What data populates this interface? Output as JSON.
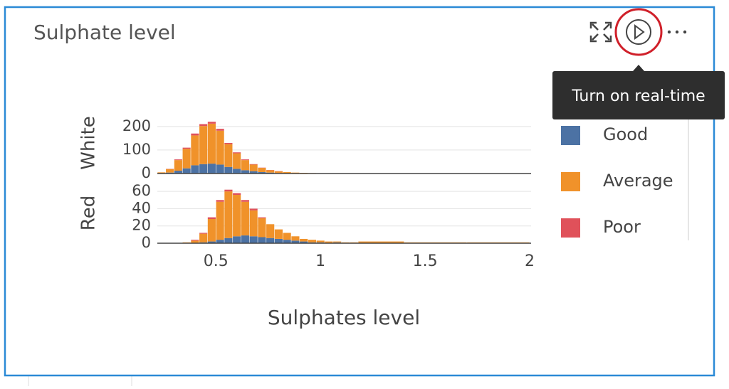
{
  "header": {
    "title": "Sulphate level"
  },
  "tooltip": {
    "text": "Turn on real-time"
  },
  "chart_data": {
    "type": "histogram",
    "x_label": "Sulphates level",
    "xlim": [
      0.22,
      2
    ],
    "xticks": [
      0.5,
      1,
      1.5,
      2
    ],
    "bins": [
      0.22,
      0.26,
      0.3,
      0.34,
      0.38,
      0.42,
      0.46,
      0.5,
      0.54,
      0.58,
      0.62,
      0.66,
      0.7,
      0.74,
      0.78,
      0.82,
      0.86,
      0.9,
      0.94,
      0.98,
      1.02,
      1.06,
      1.1,
      1.14,
      1.18,
      1.4,
      1.7,
      2.0
    ],
    "panels": [
      {
        "label": "White",
        "ylim": [
          0,
          260
        ],
        "yticks": [
          0,
          100,
          200
        ]
      },
      {
        "label": "Red",
        "ylim": [
          0,
          70
        ],
        "yticks": [
          0,
          20,
          40,
          60
        ]
      }
    ],
    "series": [
      {
        "name": "Good",
        "color": "#4c72a4",
        "values": [
          [
            1,
            4,
            12,
            22,
            35,
            40,
            42,
            38,
            28,
            20,
            14,
            10,
            6,
            4,
            2,
            1,
            1,
            0,
            0,
            0,
            0,
            0,
            0,
            0,
            0,
            0,
            0
          ],
          [
            0,
            0,
            0,
            0,
            0,
            1,
            2,
            4,
            6,
            8,
            9,
            8,
            7,
            6,
            5,
            4,
            3,
            2,
            1,
            1,
            0,
            1,
            0,
            0,
            0,
            0,
            0
          ]
        ]
      },
      {
        "name": "Average",
        "color": "#f0922a",
        "values": [
          [
            4,
            15,
            45,
            83,
            127,
            162,
            170,
            144,
            97,
            66,
            43,
            28,
            18,
            10,
            7,
            5,
            3,
            3,
            2,
            1,
            1,
            0,
            0,
            0,
            0,
            0,
            0
          ],
          [
            0,
            0,
            0,
            1,
            3,
            10,
            26,
            44,
            54,
            48,
            39,
            30,
            22,
            16,
            11,
            8,
            5,
            3,
            3,
            2,
            2,
            1,
            1,
            1,
            2,
            1,
            1
          ]
        ]
      },
      {
        "name": "Poor",
        "color": "#e0515a",
        "values": [
          [
            0,
            1,
            3,
            5,
            8,
            8,
            8,
            8,
            5,
            4,
            3,
            2,
            1,
            1,
            1,
            0,
            0,
            0,
            0,
            0,
            0,
            0,
            0,
            0,
            0,
            0,
            0
          ],
          [
            0,
            0,
            0,
            0,
            1,
            1,
            2,
            2,
            2,
            2,
            2,
            2,
            1,
            0,
            0,
            0,
            0,
            0,
            0,
            0,
            0,
            0,
            0,
            0,
            0,
            0,
            0
          ]
        ]
      }
    ]
  }
}
